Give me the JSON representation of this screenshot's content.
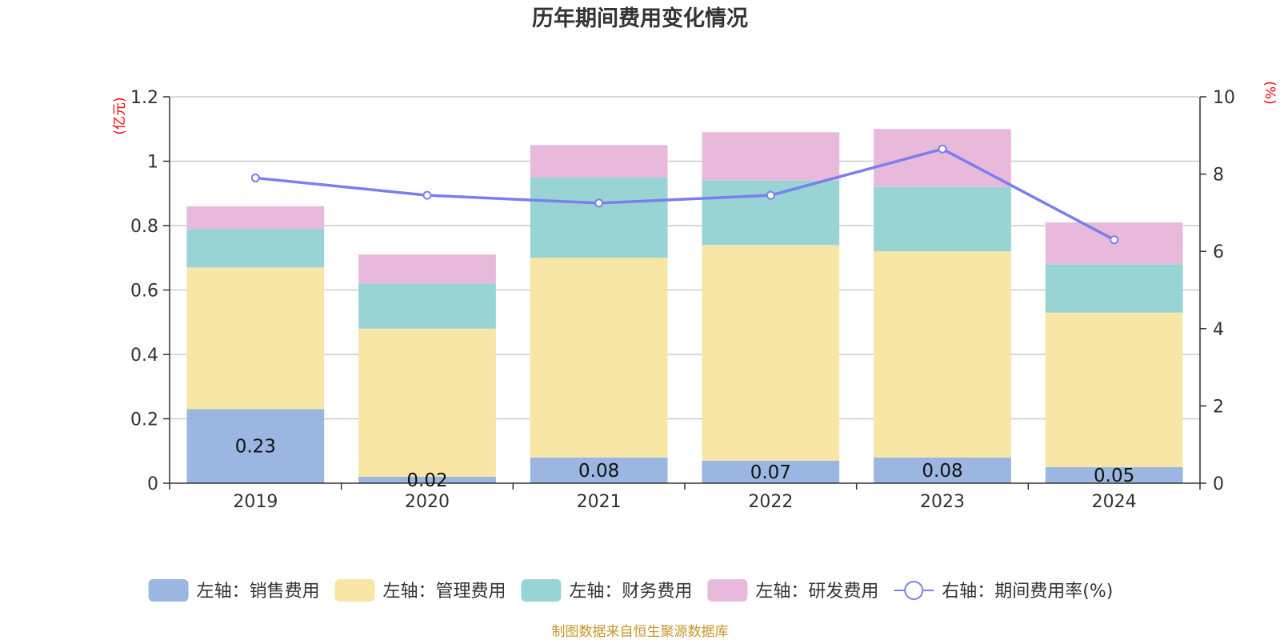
{
  "chart_data": {
    "type": "bar",
    "stacked": true,
    "title": "历年期间费用变化情况",
    "categories": [
      "2019",
      "2020",
      "2021",
      "2022",
      "2023",
      "2024"
    ],
    "left_axis": {
      "unit": "(亿元)",
      "min": 0,
      "max": 1.2,
      "ticks": [
        "0",
        "0.2",
        "0.4",
        "0.6",
        "0.8",
        "1",
        "1.2"
      ]
    },
    "right_axis": {
      "unit": "(%)",
      "min": 0,
      "max": 10,
      "ticks": [
        "0",
        "2",
        "4",
        "6",
        "8",
        "10"
      ]
    },
    "series": [
      {
        "name": "左轴：销售费用",
        "type": "bar",
        "axis": "left",
        "color": "#9bb6e0",
        "values": [
          0.23,
          0.02,
          0.08,
          0.07,
          0.08,
          0.05
        ],
        "labels": [
          "0.23",
          "0.02",
          "0.08",
          "0.07",
          "0.08",
          "0.05"
        ]
      },
      {
        "name": "左轴：管理费用",
        "type": "bar",
        "axis": "left",
        "color": "#f7e6a6",
        "values": [
          0.44,
          0.46,
          0.62,
          0.67,
          0.64,
          0.48
        ]
      },
      {
        "name": "左轴：财务费用",
        "type": "bar",
        "axis": "left",
        "color": "#98d4d4",
        "values": [
          0.12,
          0.14,
          0.25,
          0.2,
          0.2,
          0.15
        ]
      },
      {
        "name": "左轴：研发费用",
        "type": "bar",
        "axis": "left",
        "color": "#e8b9da",
        "values": [
          0.07,
          0.09,
          0.1,
          0.15,
          0.18,
          0.13
        ]
      },
      {
        "name": "右轴：期间费用率(%)",
        "type": "line",
        "axis": "right",
        "color": "#7b7ef0",
        "values": [
          7.9,
          7.45,
          7.25,
          7.45,
          8.65,
          6.3
        ]
      }
    ],
    "legend_position": "bottom",
    "grid": true
  },
  "source": "制图数据来自恒生聚源数据库"
}
